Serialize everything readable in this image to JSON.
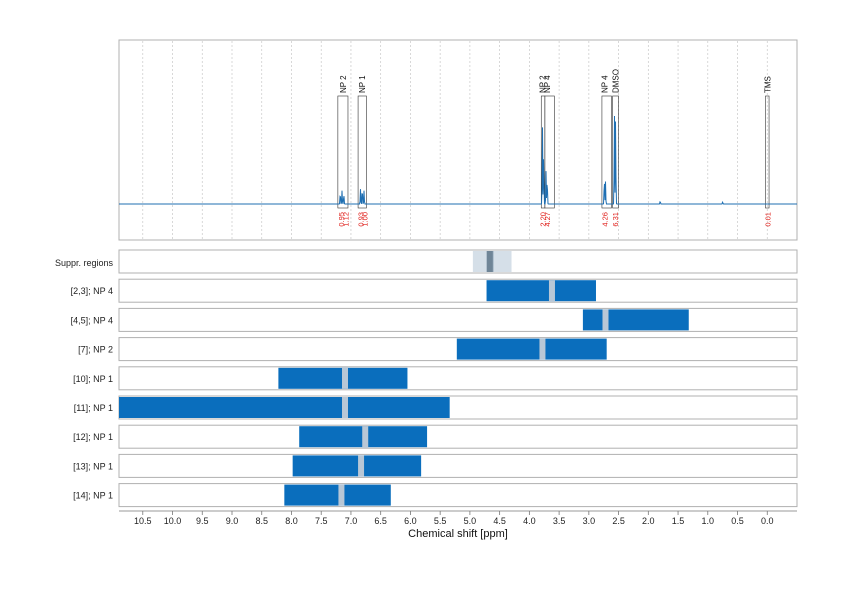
{
  "chart_data": {
    "type": "line",
    "title": "",
    "xlabel": "Chemical shift [ppm]",
    "ylabel": "",
    "xlim": [
      10.9,
      -0.5
    ],
    "ticks": [
      "10.5",
      "10.0",
      "9.5",
      "9.0",
      "8.5",
      "8.0",
      "7.5",
      "7.0",
      "6.5",
      "6.0",
      "5.5",
      "5.0",
      "4.5",
      "4.0",
      "3.5",
      "3.0",
      "2.5",
      "2.0",
      "1.5",
      "1.0",
      "0.5",
      "0.0"
    ],
    "grid": true,
    "colors": {
      "spectrum": "#1f6fb2",
      "bar": "#0a6ebd",
      "marker": "#b8c7d6",
      "integral": "#e0201b",
      "frame": "#b0b0b0"
    },
    "spectrum": {
      "peaks": [
        {
          "ppm": 7.18,
          "height": 0.08
        },
        {
          "ppm": 7.15,
          "height": 0.09
        },
        {
          "ppm": 7.12,
          "height": 0.07
        },
        {
          "ppm": 6.84,
          "height": 0.1
        },
        {
          "ppm": 6.81,
          "height": 0.11
        },
        {
          "ppm": 6.78,
          "height": 0.09
        },
        {
          "ppm": 3.78,
          "height": 0.52
        },
        {
          "ppm": 3.76,
          "height": 0.35
        },
        {
          "ppm": 3.72,
          "height": 0.22
        },
        {
          "ppm": 3.7,
          "height": 0.18
        },
        {
          "ppm": 2.74,
          "height": 0.18
        },
        {
          "ppm": 2.72,
          "height": 0.15
        },
        {
          "ppm": 2.57,
          "height": 0.62
        },
        {
          "ppm": 2.55,
          "height": 0.6
        },
        {
          "ppm": 1.8,
          "height": 0.02
        },
        {
          "ppm": 0.75,
          "height": 0.015
        }
      ],
      "peak_labels": [
        {
          "text": "NP 2",
          "ppm": 7.13
        },
        {
          "text": "NP 1",
          "ppm": 6.81
        },
        {
          "text": "NP 2",
          "ppm": 3.78
        },
        {
          "text": "NP 4",
          "ppm": 3.7
        },
        {
          "text": "NP 4",
          "ppm": 2.74
        },
        {
          "text": "DMSO",
          "ppm": 2.55
        },
        {
          "text": "TMS",
          "ppm": 0.0
        }
      ],
      "label_boxes": [
        {
          "from": 7.22,
          "to": 7.05
        },
        {
          "from": 6.88,
          "to": 6.74
        },
        {
          "from": 3.8,
          "to": 3.74
        },
        {
          "from": 3.74,
          "to": 3.58
        },
        {
          "from": 2.78,
          "to": 2.62
        },
        {
          "from": 2.6,
          "to": 2.5
        },
        {
          "from": 0.03,
          "to": -0.03
        }
      ],
      "integrals": [
        {
          "text": "0.95",
          "ppm": 7.17
        },
        {
          "text": "1.12",
          "ppm": 7.09
        },
        {
          "text": "0.93",
          "ppm": 6.84
        },
        {
          "text": "1.00",
          "ppm": 6.77
        },
        {
          "text": "2.20",
          "ppm": 3.78
        },
        {
          "text": "4.27",
          "ppm": 3.7
        },
        {
          "text": "4.26",
          "ppm": 2.74
        },
        {
          "text": "6.31",
          "ppm": 2.56
        },
        {
          "text": "0.01",
          "ppm": 0.0
        }
      ]
    },
    "suppr": {
      "label": "Suppr. regions",
      "from": 4.95,
      "to": 4.3,
      "inner_from": 4.72,
      "inner_to": 4.6
    },
    "rows": [
      {
        "label": "[2,3]; NP 4",
        "from": 4.72,
        "to": 2.88,
        "marker": 3.62
      },
      {
        "label": "[4,5]; NP 4",
        "from": 3.1,
        "to": 1.32,
        "marker": 2.72
      },
      {
        "label": "[7]; NP 2",
        "from": 5.22,
        "to": 2.7,
        "marker": 3.78
      },
      {
        "label": "[10]; NP 1",
        "from": 8.22,
        "to": 6.05,
        "marker": 7.1
      },
      {
        "label": "[11]; NP 1",
        "from": 10.9,
        "to": 5.34,
        "marker": 7.1
      },
      {
        "label": "[12]; NP 1",
        "from": 7.87,
        "to": 5.72,
        "marker": 6.76
      },
      {
        "label": "[13]; NP 1",
        "from": 7.98,
        "to": 5.82,
        "marker": 6.83
      },
      {
        "label": "[14]; NP 1",
        "from": 8.12,
        "to": 6.33,
        "marker": 7.16
      }
    ]
  }
}
